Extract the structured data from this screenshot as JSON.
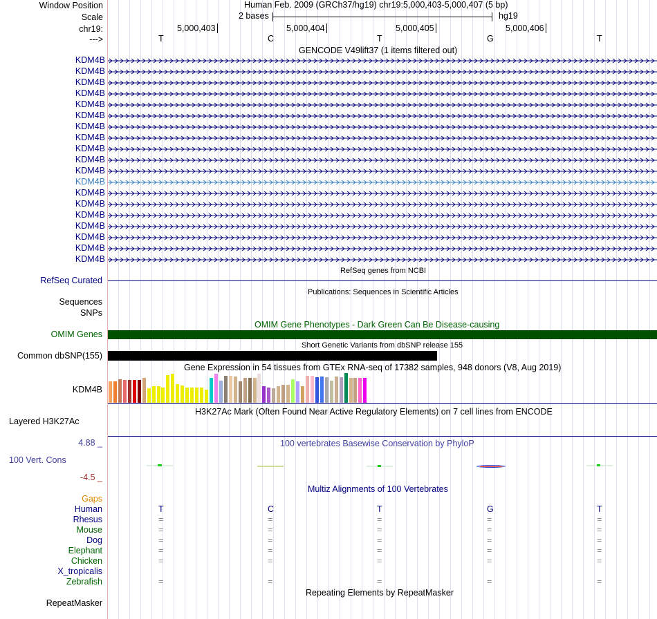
{
  "header": {
    "window_position_label": "Window Position",
    "scale_label": "Scale",
    "chrom_label": "chr19:",
    "strand_label": "--->",
    "assembly": "Human Feb. 2009 (GRCh37/hg19)   chr19:5,000,403-5,000,407 (5 bp)",
    "scale_value": "2 bases",
    "scale_db": "hg19",
    "positions": [
      "5,000,403",
      "5,000,404",
      "5,000,405",
      "5,000,406"
    ],
    "bases": [
      "T",
      "C",
      "T",
      "G",
      "T"
    ]
  },
  "gencode": {
    "title": "GENCODE V49lift37 (1 items filtered out)",
    "rows": [
      "KDM4B",
      "KDM4B",
      "KDM4B",
      "KDM4B",
      "KDM4B",
      "KDM4B",
      "KDM4B",
      "KDM4B",
      "KDM4B",
      "KDM4B",
      "KDM4B",
      "KDM4B",
      "KDM4B",
      "KDM4B",
      "KDM4B",
      "KDM4B",
      "KDM4B",
      "KDM4B",
      "KDM4B"
    ],
    "highlight_index": 11,
    "color": "#000080",
    "highlight_color": "#3a7fbf"
  },
  "refseq": {
    "title": "RefSeq genes from NCBI",
    "label": "RefSeq Curated"
  },
  "publications": {
    "title": "Publications: Sequences in Scientific Articles",
    "label_sequences": "Sequences",
    "label_snps": "SNPs"
  },
  "omim": {
    "title": "OMIM Gene Phenotypes - Dark Green Can Be Disease-causing",
    "label": "OMIM Genes",
    "color": "#005000"
  },
  "dbsnp": {
    "title": "Short Genetic Variants from dbSNP release 155",
    "label": "Common dbSNP(155)"
  },
  "gtex": {
    "title": "Gene Expression in 54 tissues from GTEx RNA-seq of 17382 samples, 948 donors (V8, Aug 2019)",
    "label": "KDM4B",
    "bars": [
      {
        "h": 0.72,
        "c": "#f4a460"
      },
      {
        "h": 0.72,
        "c": "#f08030"
      },
      {
        "h": 0.8,
        "c": "#c47a5a"
      },
      {
        "h": 0.77,
        "c": "#e86a6a"
      },
      {
        "h": 0.76,
        "c": "#a0302a"
      },
      {
        "h": 0.76,
        "c": "#dd0000"
      },
      {
        "h": 0.77,
        "c": "#800000"
      },
      {
        "h": 0.84,
        "c": "#d2a679"
      },
      {
        "h": 0.48,
        "c": "#eeee00"
      },
      {
        "h": 0.55,
        "c": "#eeee00"
      },
      {
        "h": 0.55,
        "c": "#eeee00"
      },
      {
        "h": 0.52,
        "c": "#eeee00"
      },
      {
        "h": 0.93,
        "c": "#eeee00"
      },
      {
        "h": 0.98,
        "c": "#eeee00"
      },
      {
        "h": 0.62,
        "c": "#eeee00"
      },
      {
        "h": 0.58,
        "c": "#eeee00"
      },
      {
        "h": 0.52,
        "c": "#eeee00"
      },
      {
        "h": 0.5,
        "c": "#eeee00"
      },
      {
        "h": 0.52,
        "c": "#eeee00"
      },
      {
        "h": 0.5,
        "c": "#eeee00"
      },
      {
        "h": 0.45,
        "c": "#eeee00"
      },
      {
        "h": 0.84,
        "c": "#00cccc"
      },
      {
        "h": 0.98,
        "c": "#ee82ee"
      },
      {
        "h": 0.74,
        "c": "#9bb0d8"
      },
      {
        "h": 0.9,
        "c": "#8a7f70"
      },
      {
        "h": 0.9,
        "c": "#e8c9a8"
      },
      {
        "h": 0.88,
        "c": "#d2b48c"
      },
      {
        "h": 0.72,
        "c": "#a08870"
      },
      {
        "h": 0.84,
        "c": "#c0a080"
      },
      {
        "h": 0.84,
        "c": "#8b7355"
      },
      {
        "h": 0.84,
        "c": "#d2b48c"
      },
      {
        "h": 0.98,
        "c": "#eedddd"
      },
      {
        "h": 0.56,
        "c": "#9932cc"
      },
      {
        "h": 0.5,
        "c": "#aa55cc"
      },
      {
        "h": 0.48,
        "c": "#bbaa99"
      },
      {
        "h": 0.55,
        "c": "#d2b48c"
      },
      {
        "h": 0.6,
        "c": "#c0a080"
      },
      {
        "h": 0.6,
        "c": "#d2b48c"
      },
      {
        "h": 0.8,
        "c": "#aaff66"
      },
      {
        "h": 0.72,
        "c": "#b0a0ff"
      },
      {
        "h": 0.55,
        "c": "#d2a060"
      },
      {
        "h": 0.9,
        "c": "#f0b0b0"
      },
      {
        "h": 0.9,
        "c": "#ffbbcc"
      },
      {
        "h": 0.86,
        "c": "#3355dd"
      },
      {
        "h": 0.88,
        "c": "#4477ee"
      },
      {
        "h": 0.86,
        "c": "#aaaaaa"
      },
      {
        "h": 0.74,
        "c": "#c0c0a0"
      },
      {
        "h": 0.88,
        "c": "#c8b090"
      },
      {
        "h": 0.86,
        "c": "#b0a0c0"
      },
      {
        "h": 1.0,
        "c": "#008855"
      },
      {
        "h": 0.84,
        "c": "#d2b48c"
      },
      {
        "h": 0.84,
        "c": "#c0a080"
      },
      {
        "h": 0.84,
        "c": "#ff66cc"
      },
      {
        "h": 0.84,
        "c": "#ee00ee"
      }
    ]
  },
  "h3k27ac": {
    "title": "H3K27Ac Mark (Often Found Near Active Regulatory Elements) on 7 cell lines from ENCODE",
    "label": "Layered H3K27Ac"
  },
  "phylop": {
    "title": "100 vertebrates Basewise Conservation by PhyloP",
    "label": "100 Vert. Cons",
    "max": "4.88 _",
    "min": "-4.5 _"
  },
  "multiz": {
    "title": "Multiz Alignments of 100 Vertebrates",
    "gaps_label": "Gaps",
    "species": [
      {
        "name": "Human",
        "color": "#000080",
        "row": [
          "T",
          "C",
          "T",
          "G",
          "T"
        ]
      },
      {
        "name": "Rhesus",
        "color": "#000080",
        "row": [
          "=",
          "=",
          "=",
          "=",
          "="
        ]
      },
      {
        "name": "Mouse",
        "color": "#006400",
        "row": [
          "=",
          "=",
          "=",
          "=",
          "="
        ]
      },
      {
        "name": "Dog",
        "color": "#000080",
        "row": [
          "=",
          "=",
          "=",
          "=",
          "="
        ]
      },
      {
        "name": "Elephant",
        "color": "#006400",
        "row": [
          "=",
          "=",
          "=",
          "=",
          "="
        ]
      },
      {
        "name": "Chicken",
        "color": "#006400",
        "row": [
          "=",
          "=",
          "=",
          "=",
          "="
        ]
      },
      {
        "name": "X_tropicalis",
        "color": "#000080",
        "row": [
          "",
          "",
          "",
          "",
          ""
        ]
      },
      {
        "name": "Zebrafish",
        "color": "#006400",
        "row": [
          "=",
          "=",
          "=",
          "=",
          "="
        ]
      }
    ]
  },
  "repeatmasker": {
    "title": "Repeating Elements by RepeatMasker",
    "label": "RepeatMasker"
  }
}
